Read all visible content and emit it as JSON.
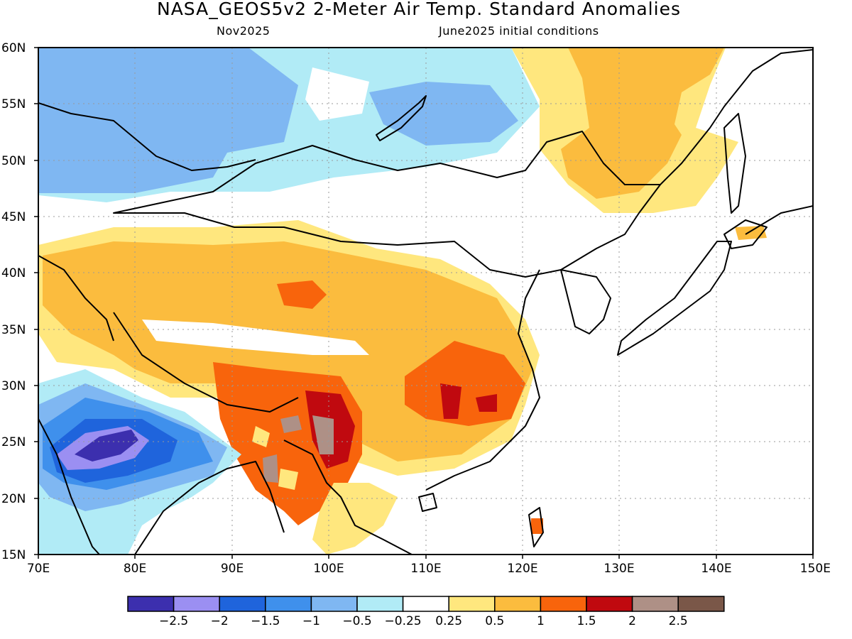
{
  "header": {
    "title": "NASA_GEOS5v2 2-Meter Air Temp. Standard Anomalies",
    "month": "Nov2025",
    "init": "June2025 initial conditions"
  },
  "map": {
    "lat_ticks": [
      "60N",
      "55N",
      "50N",
      "45N",
      "40N",
      "35N",
      "30N",
      "25N",
      "20N",
      "15N"
    ],
    "lon_ticks": [
      "70E",
      "80E",
      "90E",
      "100E",
      "110E",
      "120E",
      "130E",
      "140E",
      "150E"
    ],
    "lat_range": [
      15,
      60
    ],
    "lon_range": [
      70,
      150
    ],
    "grid": true
  },
  "colorbar": {
    "colors": [
      "#3c2fae",
      "#9b8ff2",
      "#1f64dc",
      "#3f90ec",
      "#7fb7f2",
      "#b1ebf6",
      "#ffffff",
      "#ffe77e",
      "#fbbc3e",
      "#f8640c",
      "#c0090f",
      "#ae9086",
      "#7a5748"
    ],
    "labels": [
      "-2.5",
      "-2",
      "-1.5",
      "-1",
      "-0.5",
      "-0.25",
      "0.25",
      "0.5",
      "1",
      "1.5",
      "2",
      "2.5"
    ]
  }
}
